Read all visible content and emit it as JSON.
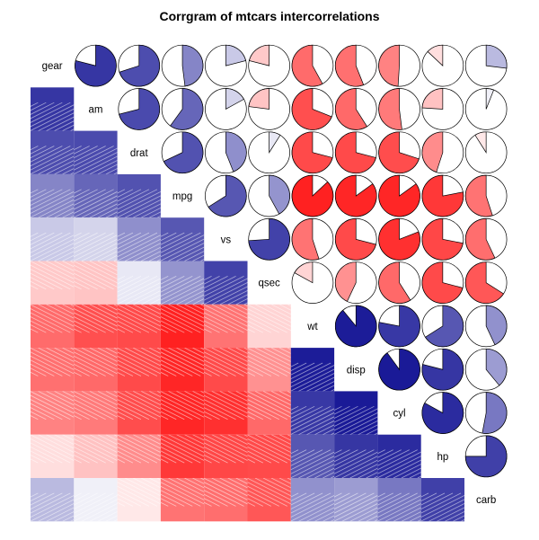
{
  "chart_data": {
    "type": "corrgram",
    "title": "Corrgram of mtcars intercorrelations",
    "lower_panel": "shade",
    "upper_panel": "pie",
    "variables": [
      "gear",
      "am",
      "drat",
      "mpg",
      "vs",
      "qsec",
      "wt",
      "disp",
      "cyl",
      "hp",
      "carb"
    ],
    "correlations": [
      [
        1.0,
        0.79,
        0.7,
        0.48,
        0.21,
        -0.21,
        -0.58,
        -0.56,
        -0.49,
        -0.13,
        0.27
      ],
      [
        0.79,
        1.0,
        0.71,
        0.6,
        0.17,
        -0.23,
        -0.69,
        -0.59,
        -0.52,
        -0.24,
        0.06
      ],
      [
        0.7,
        0.71,
        1.0,
        0.68,
        0.44,
        0.09,
        -0.71,
        -0.71,
        -0.7,
        -0.45,
        -0.09
      ],
      [
        0.48,
        0.6,
        0.68,
        1.0,
        0.66,
        0.42,
        -0.87,
        -0.85,
        -0.85,
        -0.78,
        -0.55
      ],
      [
        0.21,
        0.17,
        0.44,
        0.66,
        1.0,
        0.74,
        -0.55,
        -0.71,
        -0.81,
        -0.72,
        -0.57
      ],
      [
        -0.21,
        -0.23,
        0.09,
        0.42,
        0.74,
        1.0,
        -0.17,
        -0.43,
        -0.59,
        -0.71,
        -0.66
      ],
      [
        -0.58,
        -0.69,
        -0.71,
        -0.87,
        -0.55,
        -0.17,
        1.0,
        0.89,
        0.78,
        0.66,
        0.43
      ],
      [
        -0.56,
        -0.59,
        -0.71,
        -0.85,
        -0.71,
        -0.43,
        0.89,
        1.0,
        0.9,
        0.79,
        0.39
      ],
      [
        -0.49,
        -0.52,
        -0.7,
        -0.85,
        -0.81,
        -0.59,
        0.78,
        0.9,
        1.0,
        0.83,
        0.53
      ],
      [
        -0.13,
        -0.24,
        -0.45,
        -0.78,
        -0.72,
        -0.71,
        0.66,
        0.79,
        0.83,
        1.0,
        0.75
      ],
      [
        0.27,
        0.06,
        -0.09,
        -0.55,
        -0.57,
        -0.66,
        0.43,
        0.39,
        0.53,
        0.75,
        1.0
      ]
    ],
    "color_scale": {
      "negative_strong": "#ff0000",
      "neutral": "#ffffff",
      "positive_strong": "#00008b"
    }
  }
}
